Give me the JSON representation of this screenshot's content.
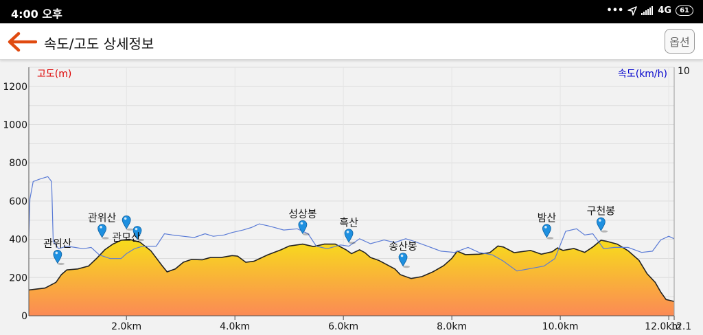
{
  "status_bar": {
    "time": "4:00 오후",
    "network": "4G",
    "battery": "61"
  },
  "header": {
    "title": "속도/고도 상세정보",
    "options_label": "옵션"
  },
  "chart_data": {
    "type": "area",
    "left_axis_label": "고도(m)",
    "right_axis_label": "속도(km/h)",
    "left_axis_color": "#dd0000",
    "right_axis_color": "#0000cc",
    "x_range": [
      0.2,
      12.1
    ],
    "left_ylim": [
      0,
      1300
    ],
    "right_ylim": [
      0,
      10
    ],
    "x_ticks": [
      {
        "value": 2.0,
        "label": "2.0km"
      },
      {
        "value": 4.0,
        "label": "4.0km"
      },
      {
        "value": 6.0,
        "label": "6.0km"
      },
      {
        "value": 8.0,
        "label": "8.0km"
      },
      {
        "value": 10.0,
        "label": "10.0km"
      },
      {
        "value": 12.0,
        "label": "12.0km"
      },
      {
        "value": 12.1,
        "label": "12.1"
      }
    ],
    "left_ticks": [
      {
        "value": 0,
        "label": "0"
      },
      {
        "value": 200,
        "label": "200"
      },
      {
        "value": 400,
        "label": "400"
      },
      {
        "value": 600,
        "label": "600"
      },
      {
        "value": 800,
        "label": "800"
      },
      {
        "value": 1000,
        "label": "1000"
      },
      {
        "value": 1200,
        "label": "1200"
      }
    ],
    "right_ticks": [
      {
        "value": 10,
        "label": "10"
      }
    ],
    "grid": true,
    "elevation_fill_top": "#f7dd1b",
    "elevation_fill_bottom": "#fb8a55",
    "speed_color": "#5a7bd6",
    "marker_color": "#1e90e0",
    "series": [
      {
        "name": "고도",
        "points": [
          [
            0.2,
            135
          ],
          [
            0.5,
            145
          ],
          [
            0.7,
            175
          ],
          [
            0.8,
            215
          ],
          [
            0.9,
            240
          ],
          [
            1.1,
            245
          ],
          [
            1.3,
            260
          ],
          [
            1.45,
            300
          ],
          [
            1.6,
            345
          ],
          [
            1.75,
            375
          ],
          [
            1.9,
            395
          ],
          [
            2.05,
            400
          ],
          [
            2.25,
            385
          ],
          [
            2.45,
            340
          ],
          [
            2.65,
            265
          ],
          [
            2.75,
            230
          ],
          [
            2.9,
            245
          ],
          [
            3.05,
            280
          ],
          [
            3.2,
            295
          ],
          [
            3.4,
            293
          ],
          [
            3.55,
            305
          ],
          [
            3.75,
            305
          ],
          [
            3.95,
            315
          ],
          [
            4.05,
            312
          ],
          [
            4.2,
            280
          ],
          [
            4.35,
            285
          ],
          [
            4.6,
            318
          ],
          [
            4.85,
            345
          ],
          [
            5.0,
            365
          ],
          [
            5.25,
            375
          ],
          [
            5.45,
            362
          ],
          [
            5.65,
            375
          ],
          [
            5.85,
            375
          ],
          [
            6.05,
            345
          ],
          [
            6.15,
            325
          ],
          [
            6.3,
            345
          ],
          [
            6.4,
            330
          ],
          [
            6.5,
            305
          ],
          [
            6.65,
            290
          ],
          [
            6.8,
            268
          ],
          [
            6.95,
            245
          ],
          [
            7.05,
            215
          ],
          [
            7.25,
            195
          ],
          [
            7.45,
            205
          ],
          [
            7.65,
            230
          ],
          [
            7.85,
            262
          ],
          [
            8.0,
            300
          ],
          [
            8.1,
            338
          ],
          [
            8.25,
            320
          ],
          [
            8.5,
            322
          ],
          [
            8.7,
            330
          ],
          [
            8.85,
            365
          ],
          [
            8.95,
            360
          ],
          [
            9.15,
            330
          ],
          [
            9.45,
            342
          ],
          [
            9.65,
            322
          ],
          [
            9.85,
            335
          ],
          [
            9.95,
            355
          ],
          [
            10.05,
            342
          ],
          [
            10.25,
            352
          ],
          [
            10.45,
            332
          ],
          [
            10.6,
            360
          ],
          [
            10.75,
            395
          ],
          [
            10.85,
            390
          ],
          [
            11.05,
            375
          ],
          [
            11.25,
            340
          ],
          [
            11.45,
            290
          ],
          [
            11.6,
            220
          ],
          [
            11.75,
            175
          ],
          [
            11.85,
            125
          ],
          [
            11.95,
            85
          ],
          [
            12.1,
            75
          ]
        ]
      },
      {
        "name": "속도",
        "points": [
          [
            0.2,
            3.2
          ],
          [
            0.22,
            4.7
          ],
          [
            0.28,
            5.4
          ],
          [
            0.4,
            5.5
          ],
          [
            0.55,
            5.6
          ],
          [
            0.62,
            5.4
          ],
          [
            0.65,
            3.0
          ],
          [
            0.75,
            2.7
          ],
          [
            0.9,
            2.8
          ],
          [
            1.05,
            2.75
          ],
          [
            1.2,
            2.7
          ],
          [
            1.35,
            2.75
          ],
          [
            1.5,
            2.45
          ],
          [
            1.7,
            2.3
          ],
          [
            1.9,
            2.3
          ],
          [
            2.0,
            2.5
          ],
          [
            2.15,
            2.7
          ],
          [
            2.3,
            2.8
          ],
          [
            2.55,
            2.8
          ],
          [
            2.7,
            3.3
          ],
          [
            2.85,
            3.25
          ],
          [
            3.05,
            3.2
          ],
          [
            3.25,
            3.15
          ],
          [
            3.45,
            3.3
          ],
          [
            3.6,
            3.2
          ],
          [
            3.8,
            3.25
          ],
          [
            3.95,
            3.35
          ],
          [
            4.15,
            3.45
          ],
          [
            4.3,
            3.55
          ],
          [
            4.45,
            3.7
          ],
          [
            4.65,
            3.6
          ],
          [
            4.9,
            3.45
          ],
          [
            5.15,
            3.5
          ],
          [
            5.35,
            3.3
          ],
          [
            5.5,
            2.8
          ],
          [
            5.7,
            2.7
          ],
          [
            5.95,
            2.85
          ],
          [
            6.1,
            2.8
          ],
          [
            6.3,
            3.1
          ],
          [
            6.5,
            2.9
          ],
          [
            6.75,
            3.05
          ],
          [
            6.95,
            2.95
          ],
          [
            7.15,
            3.1
          ],
          [
            7.3,
            3.0
          ],
          [
            7.55,
            2.8
          ],
          [
            7.8,
            2.6
          ],
          [
            8.05,
            2.55
          ],
          [
            8.3,
            2.75
          ],
          [
            8.5,
            2.55
          ],
          [
            8.75,
            2.45
          ],
          [
            8.95,
            2.2
          ],
          [
            9.2,
            1.8
          ],
          [
            9.45,
            1.9
          ],
          [
            9.7,
            2.0
          ],
          [
            9.9,
            2.3
          ],
          [
            10.1,
            3.4
          ],
          [
            10.3,
            3.5
          ],
          [
            10.45,
            3.25
          ],
          [
            10.6,
            3.3
          ],
          [
            10.8,
            2.7
          ],
          [
            11.0,
            2.75
          ],
          [
            11.25,
            2.75
          ],
          [
            11.5,
            2.55
          ],
          [
            11.7,
            2.6
          ],
          [
            11.85,
            3.05
          ],
          [
            12.0,
            3.2
          ],
          [
            12.1,
            3.1
          ]
        ]
      }
    ],
    "waypoints": [
      {
        "name": "관위산",
        "x": 0.73,
        "elev": 275,
        "label_offset": "above"
      },
      {
        "name": "관위산",
        "x": 1.55,
        "elev": 410,
        "label_offset": "above"
      },
      {
        "name": "",
        "x": 2.0,
        "elev": 455,
        "label_offset": "above"
      },
      {
        "name": "관모산",
        "x": 2.2,
        "elev": 400,
        "label_offset": "below-left"
      },
      {
        "name": "성상봉",
        "x": 5.25,
        "elev": 430,
        "label_offset": "above"
      },
      {
        "name": "흑산",
        "x": 6.1,
        "elev": 385,
        "label_offset": "above"
      },
      {
        "name": "송산봉",
        "x": 7.1,
        "elev": 260,
        "label_offset": "above"
      },
      {
        "name": "밤산",
        "x": 9.75,
        "elev": 410,
        "label_offset": "above"
      },
      {
        "name": "구천봉",
        "x": 10.75,
        "elev": 445,
        "label_offset": "above"
      }
    ]
  }
}
